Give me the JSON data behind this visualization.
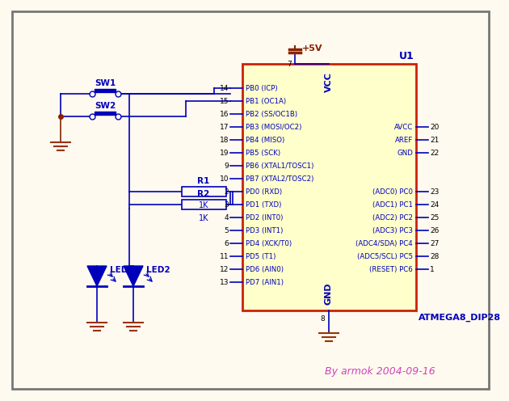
{
  "bg_color": "#FFFAEF",
  "blue": "#0000BB",
  "red_border": "#CC2200",
  "dark_red": "#882200",
  "gnd_color": "#993300",
  "pink": "#CC44BB",
  "ic_fill": "#FFFFCC",
  "ic_label": "ATMEGA8_DIP28",
  "ic_name": "U1",
  "vcc_label": "+5V",
  "gnd_pin_num": "8",
  "vcc_pin_num": "7",
  "signature": "By armok 2004-09-16",
  "left_labels": [
    "PB0 (ICP)",
    "PB1 (OC1A)",
    "PB2 (SS/OC1B)",
    "PB3 (MOSI/OC2)",
    "PB4 (MISO)",
    "PB5 (SCK)",
    "PB6 (XTAL1/TOSC1)",
    "PB7 (XTAL2/TOSC2)"
  ],
  "left_nums": [
    "14",
    "15",
    "16",
    "17",
    "18",
    "19",
    "9",
    "10"
  ],
  "right_top_labels": [
    "AVCC",
    "AREF",
    "GND"
  ],
  "right_top_nums": [
    "20",
    "21",
    "22"
  ],
  "pd_labels": [
    "PD0 (RXD)",
    "PD1 (TXD)",
    "PD2 (INT0)",
    "PD3 (INT1)",
    "PD4 (XCK/T0)",
    "PD5 (T1)",
    "PD6 (AIN0)",
    "PD7 (AIN1)"
  ],
  "pd_nums": [
    "2",
    "3",
    "4",
    "5",
    "6",
    "11",
    "12",
    "13"
  ],
  "pc_labels": [
    "(ADC0) PC0",
    "(ADC1) PC1",
    "(ADC2) PC2",
    "(ADC3) PC3",
    "(ADC4/SDA) PC4",
    "(ADC5/SCL) PC5",
    "(RESET) PC6"
  ],
  "pc_nums": [
    "23",
    "24",
    "25",
    "26",
    "27",
    "28",
    "1"
  ],
  "r1_label": "R1",
  "r2_label": "R2",
  "r_value": "1K",
  "sw1_label": "SW1",
  "sw2_label": "SW2",
  "led1_label": "LED1",
  "led2_label": "LED2"
}
